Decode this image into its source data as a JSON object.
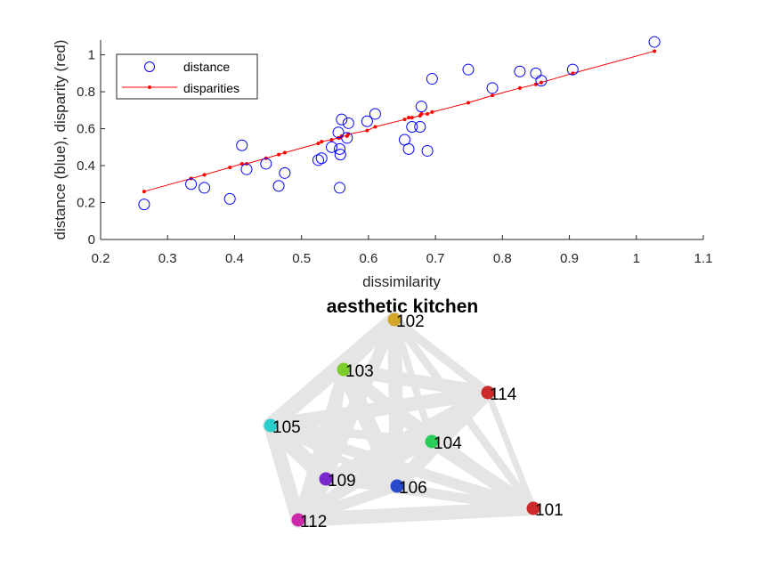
{
  "chart_data": [
    {
      "type": "scatter",
      "xlabel": "dissimilarity",
      "ylabel": "distance (blue), disparity (red)",
      "xlim": [
        0.2,
        1.1
      ],
      "ylim": [
        0,
        1.08
      ],
      "xticks": [
        "0.2",
        "0.3",
        "0.4",
        "0.5",
        "0.6",
        "0.7",
        "0.8",
        "0.9",
        "1",
        "1.1"
      ],
      "yticks": [
        "0",
        "0.2",
        "0.4",
        "0.6",
        "0.8",
        "1"
      ],
      "xtick_values": [
        0.2,
        0.3,
        0.4,
        0.5,
        0.6,
        0.7,
        0.8,
        0.9,
        1.0,
        1.1
      ],
      "ytick_values": [
        0,
        0.2,
        0.4,
        0.6,
        0.8,
        1.0
      ],
      "legend_position": "top-left",
      "grid": false,
      "series": [
        {
          "name": "distance",
          "marker": "open-circle",
          "color": "#0000ff",
          "points": [
            [
              0.265,
              0.19
            ],
            [
              0.335,
              0.3
            ],
            [
              0.355,
              0.28
            ],
            [
              0.393,
              0.22
            ],
            [
              0.411,
              0.51
            ],
            [
              0.418,
              0.38
            ],
            [
              0.447,
              0.41
            ],
            [
              0.466,
              0.29
            ],
            [
              0.475,
              0.36
            ],
            [
              0.525,
              0.43
            ],
            [
              0.53,
              0.44
            ],
            [
              0.545,
              0.5
            ],
            [
              0.555,
              0.58
            ],
            [
              0.557,
              0.49
            ],
            [
              0.557,
              0.28
            ],
            [
              0.558,
              0.46
            ],
            [
              0.56,
              0.65
            ],
            [
              0.568,
              0.55
            ],
            [
              0.57,
              0.63
            ],
            [
              0.598,
              0.64
            ],
            [
              0.61,
              0.68
            ],
            [
              0.654,
              0.54
            ],
            [
              0.66,
              0.49
            ],
            [
              0.665,
              0.61
            ],
            [
              0.677,
              0.61
            ],
            [
              0.679,
              0.72
            ],
            [
              0.688,
              0.48
            ],
            [
              0.695,
              0.87
            ],
            [
              0.749,
              0.92
            ],
            [
              0.785,
              0.82
            ],
            [
              0.826,
              0.91
            ],
            [
              0.85,
              0.9
            ],
            [
              0.858,
              0.86
            ],
            [
              0.905,
              0.92
            ],
            [
              1.027,
              1.07
            ]
          ]
        },
        {
          "name": "disparities",
          "marker": "dot-line",
          "color": "#ff0000",
          "points": [
            [
              0.265,
              0.26
            ],
            [
              0.335,
              0.33
            ],
            [
              0.355,
              0.35
            ],
            [
              0.393,
              0.39
            ],
            [
              0.411,
              0.41
            ],
            [
              0.418,
              0.41
            ],
            [
              0.447,
              0.44
            ],
            [
              0.466,
              0.46
            ],
            [
              0.475,
              0.47
            ],
            [
              0.525,
              0.52
            ],
            [
              0.53,
              0.53
            ],
            [
              0.545,
              0.54
            ],
            [
              0.555,
              0.55
            ],
            [
              0.557,
              0.55
            ],
            [
              0.56,
              0.56
            ],
            [
              0.568,
              0.56
            ],
            [
              0.57,
              0.57
            ],
            [
              0.598,
              0.59
            ],
            [
              0.61,
              0.61
            ],
            [
              0.654,
              0.65
            ],
            [
              0.66,
              0.66
            ],
            [
              0.665,
              0.66
            ],
            [
              0.677,
              0.67
            ],
            [
              0.679,
              0.68
            ],
            [
              0.688,
              0.68
            ],
            [
              0.695,
              0.69
            ],
            [
              0.749,
              0.74
            ],
            [
              0.785,
              0.78
            ],
            [
              0.826,
              0.82
            ],
            [
              0.85,
              0.84
            ],
            [
              0.858,
              0.85
            ],
            [
              0.905,
              0.9
            ],
            [
              1.027,
              1.02
            ]
          ]
        }
      ]
    },
    {
      "type": "network",
      "title": "aesthetic kitchen",
      "edge_color": "#e5e5e5",
      "nodes": [
        {
          "label": "102",
          "color": "#d4a62a"
        },
        {
          "label": "103",
          "color": "#7ccc2a"
        },
        {
          "label": "114",
          "color": "#cc2a2a"
        },
        {
          "label": "105",
          "color": "#2acccc"
        },
        {
          "label": "104",
          "color": "#2acc5a"
        },
        {
          "label": "109",
          "color": "#7a2acc"
        },
        {
          "label": "106",
          "color": "#2a4acc"
        },
        {
          "label": "101",
          "color": "#cc2a2a"
        },
        {
          "label": "112",
          "color": "#cc2aa8"
        }
      ]
    }
  ]
}
